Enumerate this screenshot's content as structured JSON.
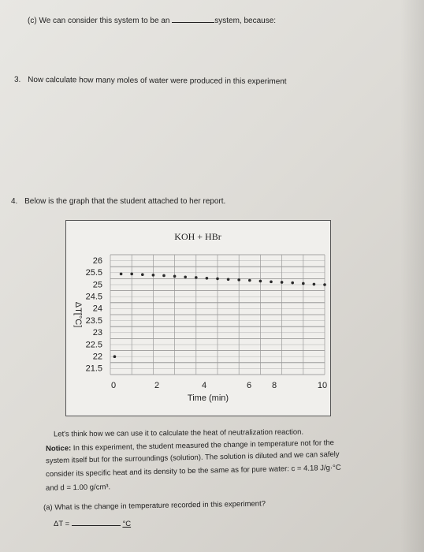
{
  "questions": {
    "q_c": {
      "prefix": "(c) We can consider this system to be an",
      "suffix": "system, because:"
    },
    "q3": {
      "number": "3.",
      "text": "Now calculate how many moles of water were produced in this experiment"
    },
    "q4": {
      "number": "4.",
      "text": "Below is the graph that the student attached to her report."
    }
  },
  "chart_data": {
    "type": "scatter",
    "title": "KOH + HBr",
    "xlabel": "Time (min)",
    "ylabel": "ΔT[°C]",
    "x_ticks": [
      "0",
      "2",
      "4",
      "6",
      "8",
      "10"
    ],
    "y_ticks": [
      "26",
      "25.5",
      "25",
      "24.5",
      "24",
      "23.5",
      "23",
      "22.5",
      "22",
      "21.5"
    ],
    "xlim": [
      0,
      10
    ],
    "ylim": [
      21.5,
      26
    ],
    "grid": true,
    "points": [
      {
        "x": 0.2,
        "y": 22.0
      },
      {
        "x": 0.5,
        "y": 25.45
      },
      {
        "x": 1.0,
        "y": 25.45
      },
      {
        "x": 1.5,
        "y": 25.42
      },
      {
        "x": 2.0,
        "y": 25.4
      },
      {
        "x": 2.5,
        "y": 25.38
      },
      {
        "x": 3.0,
        "y": 25.35
      },
      {
        "x": 3.5,
        "y": 25.32
      },
      {
        "x": 4.0,
        "y": 25.3
      },
      {
        "x": 4.5,
        "y": 25.27
      },
      {
        "x": 5.0,
        "y": 25.25
      },
      {
        "x": 5.5,
        "y": 25.22
      },
      {
        "x": 6.0,
        "y": 25.2
      },
      {
        "x": 6.5,
        "y": 25.18
      },
      {
        "x": 7.0,
        "y": 25.15
      },
      {
        "x": 7.5,
        "y": 25.12
      },
      {
        "x": 8.0,
        "y": 25.1
      },
      {
        "x": 8.5,
        "y": 25.08
      },
      {
        "x": 9.0,
        "y": 25.05
      },
      {
        "x": 9.5,
        "y": 25.02
      },
      {
        "x": 10.0,
        "y": 25.0
      }
    ]
  },
  "notice": {
    "intro": "Let's think how we can use it to calculate the heat of neutralization reaction.",
    "label": "Notice:",
    "line1": "In this experiment, the student measured the change in temperature not for the",
    "line2": "system itself but for the surroundings (solution). The solution is diluted and we can safely",
    "line3": "consider its specific heat and its density to be the same as for pure water: c = 4.18 J/g·°C",
    "line4": "and d = 1.00 g/cm³."
  },
  "part_a": {
    "question": "(a) What is the change in temperature recorded in this experiment?",
    "answer_label": "ΔT =",
    "unit": "°C"
  }
}
